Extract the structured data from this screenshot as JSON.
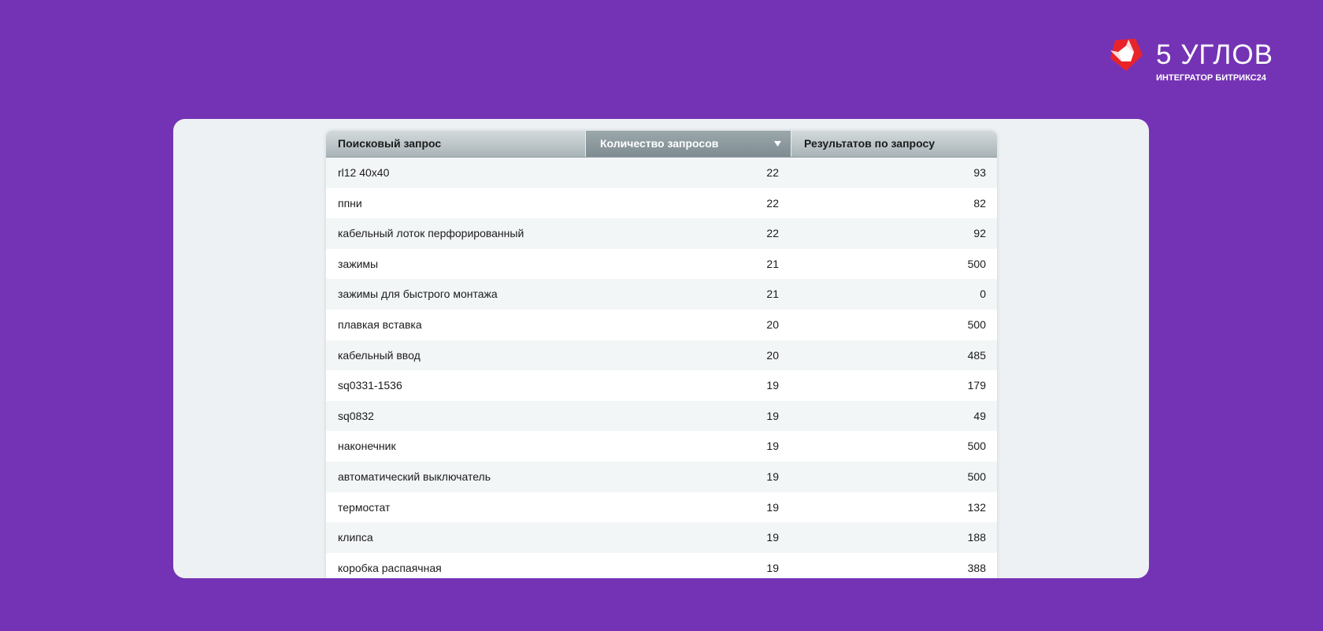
{
  "logo": {
    "name": "5 УГЛОВ",
    "tagline": "ИНТЕГРАТОР БИТРИКС24"
  },
  "table": {
    "columns": [
      "Поисковый запрос",
      "Количество запросов",
      "Результатов по запросу"
    ],
    "rows": [
      [
        "rl12 40x40",
        22,
        93
      ],
      [
        "ппни",
        22,
        82
      ],
      [
        "кабельный лоток перфорированный",
        22,
        92
      ],
      [
        "зажимы",
        21,
        500
      ],
      [
        "зажимы для быстрого монтажа",
        21,
        0
      ],
      [
        "плавкая вставка",
        20,
        500
      ],
      [
        "кабельный ввод",
        20,
        485
      ],
      [
        "sq0331-1536",
        19,
        179
      ],
      [
        "sq0832",
        19,
        49
      ],
      [
        "наконечник",
        19,
        500
      ],
      [
        "автоматический выключатель",
        19,
        500
      ],
      [
        "термостат",
        19,
        132
      ],
      [
        "клипса",
        19,
        188
      ],
      [
        "коробка распаячная",
        19,
        388
      ]
    ]
  }
}
